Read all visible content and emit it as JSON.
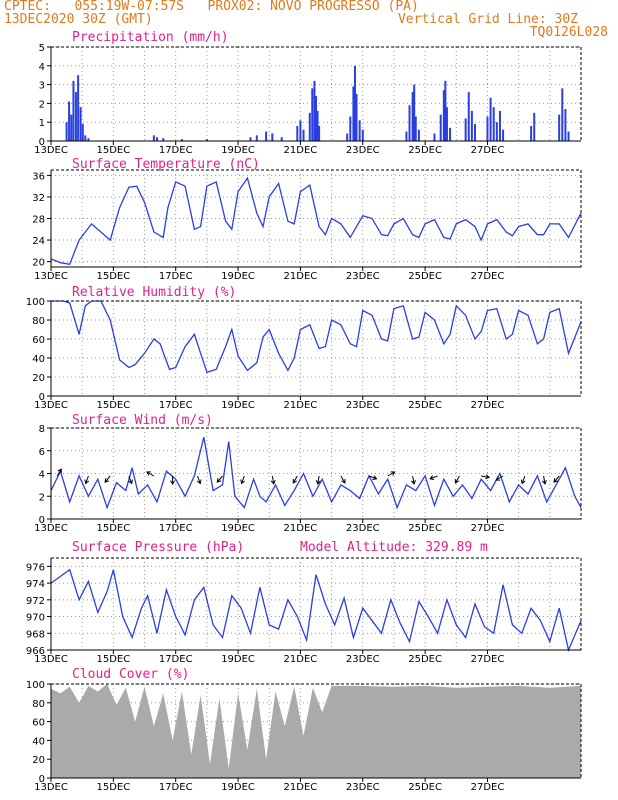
{
  "header": {
    "line1": "CPTEC:   055:19W-07:57S   PROX02: NOVO PROGRESSO (PA)",
    "line2": "13DEC2020 30Z (GMT)",
    "vertical_grid": "Vertical Grid Line: 30Z",
    "code": "TQ0126L028"
  },
  "colors": {
    "header": "#e07a1e",
    "title": "#e0218a",
    "line": "#2a3fe0",
    "cloud": "#aaaaaa"
  },
  "chart_data": [
    {
      "type": "bar",
      "title": "Precipitation (mm/h)",
      "ylim": [
        0,
        5
      ],
      "yticks": [
        0,
        1,
        2,
        3,
        4,
        5
      ],
      "xlabels": [
        "13DEC",
        "15DEC",
        "17DEC",
        "19DEC",
        "21DEC",
        "23DEC",
        "25DEC",
        "27DEC"
      ],
      "bars": [
        [
          0.5,
          1.0
        ],
        [
          0.58,
          2.1
        ],
        [
          0.65,
          1.4
        ],
        [
          0.72,
          3.2
        ],
        [
          0.8,
          2.6
        ],
        [
          0.87,
          3.5
        ],
        [
          0.95,
          1.8
        ],
        [
          1.02,
          0.9
        ],
        [
          1.1,
          0.3
        ],
        [
          1.2,
          0.15
        ],
        [
          3.3,
          0.3
        ],
        [
          3.4,
          0.2
        ],
        [
          3.6,
          0.15
        ],
        [
          4.2,
          0.1
        ],
        [
          5.0,
          0.1
        ],
        [
          6.4,
          0.2
        ],
        [
          6.6,
          0.3
        ],
        [
          6.9,
          0.5
        ],
        [
          7.1,
          0.4
        ],
        [
          7.4,
          0.2
        ],
        [
          7.9,
          0.8
        ],
        [
          8.0,
          1.1
        ],
        [
          8.1,
          0.6
        ],
        [
          8.3,
          1.5
        ],
        [
          8.38,
          2.8
        ],
        [
          8.45,
          3.2
        ],
        [
          8.5,
          2.4
        ],
        [
          8.55,
          1.6
        ],
        [
          8.6,
          0.8
        ],
        [
          9.5,
          0.4
        ],
        [
          9.6,
          1.3
        ],
        [
          9.7,
          2.9
        ],
        [
          9.75,
          4.0
        ],
        [
          9.8,
          2.5
        ],
        [
          9.9,
          1.1
        ],
        [
          10.0,
          0.6
        ],
        [
          11.4,
          0.5
        ],
        [
          11.5,
          1.9
        ],
        [
          11.6,
          2.6
        ],
        [
          11.65,
          3.0
        ],
        [
          11.7,
          1.3
        ],
        [
          11.8,
          0.6
        ],
        [
          12.3,
          0.4
        ],
        [
          12.5,
          1.4
        ],
        [
          12.6,
          2.7
        ],
        [
          12.65,
          3.2
        ],
        [
          12.7,
          1.8
        ],
        [
          12.8,
          0.7
        ],
        [
          13.3,
          1.2
        ],
        [
          13.4,
          2.6
        ],
        [
          13.5,
          1.6
        ],
        [
          13.6,
          0.9
        ],
        [
          14.0,
          1.3
        ],
        [
          14.1,
          2.3
        ],
        [
          14.2,
          1.8
        ],
        [
          14.3,
          1.0
        ],
        [
          14.4,
          1.6
        ],
        [
          14.5,
          0.6
        ],
        [
          15.4,
          0.8
        ],
        [
          15.5,
          1.5
        ],
        [
          16.3,
          1.4
        ],
        [
          16.4,
          2.8
        ],
        [
          16.5,
          1.7
        ],
        [
          16.6,
          0.5
        ]
      ]
    },
    {
      "type": "line",
      "title": "Surface Temperature (nC)",
      "ylim": [
        19,
        37
      ],
      "yticks": [
        20,
        24,
        28,
        32,
        36
      ],
      "xlabels": [
        "13DEC",
        "15DEC",
        "17DEC",
        "19DEC",
        "21DEC",
        "23DEC",
        "25DEC",
        "27DEC"
      ],
      "x": [
        0.0,
        0.3,
        0.6,
        0.9,
        1.3,
        1.6,
        1.9,
        2.2,
        2.5,
        2.75,
        3.0,
        3.3,
        3.6,
        3.75,
        4.0,
        4.3,
        4.6,
        4.8,
        5.0,
        5.3,
        5.6,
        5.8,
        6.0,
        6.3,
        6.6,
        6.8,
        7.0,
        7.3,
        7.6,
        7.8,
        8.0,
        8.3,
        8.6,
        8.8,
        9.0,
        9.3,
        9.6,
        9.8,
        10.0,
        10.3,
        10.6,
        10.8,
        11.0,
        11.3,
        11.6,
        11.8,
        12.0,
        12.3,
        12.6,
        12.8,
        13.0,
        13.3,
        13.6,
        13.8,
        14.0,
        14.3,
        14.6,
        14.8,
        15.0,
        15.3,
        15.6,
        15.8,
        16.0,
        16.3,
        16.6,
        17.0
      ],
      "y": [
        20.5,
        19.8,
        19.5,
        24.0,
        27.0,
        25.5,
        24.0,
        30.0,
        33.8,
        34.0,
        31.0,
        25.5,
        24.5,
        30.0,
        34.8,
        34.0,
        26.0,
        26.5,
        34.0,
        34.8,
        27.5,
        26.0,
        33.0,
        35.5,
        29.0,
        26.5,
        32.0,
        34.5,
        27.5,
        27.0,
        33.0,
        34.2,
        26.5,
        25.0,
        28.0,
        27.0,
        24.5,
        26.5,
        28.5,
        28.0,
        25.0,
        24.8,
        27.0,
        28.0,
        25.0,
        24.5,
        27.0,
        27.8,
        24.5,
        24.2,
        27.0,
        27.8,
        26.5,
        24.0,
        27.0,
        27.8,
        25.5,
        24.8,
        26.5,
        27.0,
        25.0,
        25.0,
        27.0,
        27.0,
        24.5,
        29.0
      ]
    },
    {
      "type": "line",
      "title": "Relative Humidity (%)",
      "ylim": [
        0,
        100
      ],
      "yticks": [
        0,
        20,
        40,
        60,
        80,
        100
      ],
      "xlabels": [
        "13DEC",
        "15DEC",
        "17DEC",
        "19DEC",
        "21DEC",
        "23DEC",
        "25DEC",
        "27DEC"
      ],
      "x": [
        0.0,
        0.4,
        0.6,
        0.9,
        1.1,
        1.3,
        1.6,
        1.9,
        2.2,
        2.5,
        2.7,
        3.0,
        3.3,
        3.5,
        3.8,
        4.0,
        4.3,
        4.6,
        4.8,
        5.0,
        5.3,
        5.6,
        5.8,
        6.0,
        6.3,
        6.6,
        6.8,
        7.0,
        7.3,
        7.6,
        7.8,
        8.0,
        8.3,
        8.6,
        8.8,
        9.0,
        9.3,
        9.6,
        9.8,
        10.0,
        10.3,
        10.6,
        10.8,
        11.0,
        11.3,
        11.6,
        11.8,
        12.0,
        12.3,
        12.6,
        12.8,
        13.0,
        13.3,
        13.6,
        13.8,
        14.0,
        14.3,
        14.6,
        14.8,
        15.0,
        15.3,
        15.6,
        15.8,
        16.0,
        16.3,
        16.6,
        17.0
      ],
      "y": [
        100,
        100,
        98,
        65,
        95,
        100,
        100,
        80,
        38,
        30,
        33,
        45,
        60,
        55,
        28,
        30,
        52,
        65,
        45,
        25,
        28,
        52,
        70,
        42,
        27,
        35,
        62,
        70,
        45,
        27,
        40,
        70,
        75,
        50,
        52,
        80,
        75,
        55,
        52,
        90,
        85,
        60,
        58,
        92,
        95,
        60,
        62,
        88,
        80,
        55,
        65,
        95,
        85,
        60,
        68,
        90,
        92,
        60,
        65,
        90,
        85,
        55,
        60,
        88,
        92,
        45,
        78
      ]
    },
    {
      "type": "line",
      "title": "Surface Wind (m/s)",
      "ylim": [
        0,
        8
      ],
      "yticks": [
        0,
        2,
        4,
        6,
        8
      ],
      "xlabels": [
        "13DEC",
        "15DEC",
        "17DEC",
        "19DEC",
        "21DEC",
        "23DEC",
        "25DEC",
        "27DEC"
      ],
      "x": [
        0.0,
        0.3,
        0.6,
        0.9,
        1.2,
        1.5,
        1.8,
        2.1,
        2.4,
        2.6,
        2.8,
        3.1,
        3.4,
        3.7,
        4.0,
        4.3,
        4.6,
        4.9,
        5.2,
        5.5,
        5.7,
        5.9,
        6.2,
        6.5,
        6.7,
        6.9,
        7.2,
        7.5,
        7.8,
        8.1,
        8.4,
        8.7,
        9.0,
        9.3,
        9.6,
        9.9,
        10.2,
        10.5,
        10.8,
        11.1,
        11.4,
        11.7,
        12.0,
        12.3,
        12.6,
        12.9,
        13.2,
        13.5,
        13.8,
        14.1,
        14.4,
        14.7,
        15.0,
        15.3,
        15.6,
        15.9,
        16.2,
        16.5,
        16.8,
        17.0
      ],
      "y": [
        2.5,
        4.2,
        1.5,
        3.8,
        2.0,
        3.5,
        1.0,
        3.2,
        2.5,
        4.5,
        2.2,
        3.0,
        1.5,
        4.2,
        3.5,
        2.0,
        3.8,
        7.2,
        2.5,
        3.0,
        6.8,
        2.0,
        1.0,
        3.5,
        2.0,
        1.5,
        3.0,
        1.2,
        2.5,
        4.0,
        2.0,
        3.5,
        1.5,
        3.0,
        2.5,
        1.8,
        3.8,
        2.2,
        3.5,
        1.0,
        3.0,
        2.5,
        3.8,
        1.2,
        3.5,
        2.0,
        3.0,
        1.8,
        3.5,
        2.5,
        4.0,
        1.5,
        3.0,
        2.2,
        3.8,
        1.5,
        3.0,
        4.5,
        2.0,
        1.0
      ]
    },
    {
      "type": "line",
      "title": "Surface Pressure (hPa)",
      "annotation": "Model Altitude: 329.89 m",
      "ylim": [
        966,
        977
      ],
      "yticks": [
        966,
        968,
        970,
        972,
        974,
        976
      ],
      "xlabels": [
        "13DEC",
        "15DEC",
        "17DEC",
        "19DEC",
        "21DEC",
        "23DEC",
        "25DEC",
        "27DEC"
      ],
      "x": [
        0.0,
        0.3,
        0.6,
        0.9,
        1.2,
        1.5,
        1.8,
        2.0,
        2.3,
        2.6,
        2.9,
        3.1,
        3.4,
        3.7,
        4.0,
        4.3,
        4.6,
        4.9,
        5.2,
        5.5,
        5.8,
        6.1,
        6.4,
        6.7,
        7.0,
        7.3,
        7.6,
        7.9,
        8.2,
        8.5,
        8.8,
        9.1,
        9.4,
        9.7,
        10.0,
        10.3,
        10.6,
        10.9,
        11.2,
        11.5,
        11.8,
        12.1,
        12.4,
        12.7,
        13.0,
        13.3,
        13.6,
        13.9,
        14.2,
        14.5,
        14.8,
        15.1,
        15.4,
        15.7,
        16.0,
        16.3,
        16.6,
        17.0
      ],
      "y": [
        974.0,
        974.8,
        975.6,
        972.0,
        974.2,
        970.5,
        973.0,
        975.6,
        970.0,
        967.5,
        971.0,
        972.5,
        968.0,
        973.2,
        970.0,
        967.8,
        972.0,
        973.5,
        969.0,
        967.5,
        972.5,
        971.0,
        968.0,
        973.5,
        969.0,
        968.5,
        972.0,
        970.0,
        967.2,
        975.0,
        971.5,
        969.0,
        972.2,
        967.5,
        971.0,
        969.5,
        968.0,
        972.0,
        969.2,
        967.0,
        971.8,
        970.0,
        968.0,
        972.0,
        969.0,
        967.5,
        971.5,
        968.8,
        968.0,
        973.8,
        969.0,
        968.0,
        971.0,
        969.5,
        967.0,
        971.0,
        966.0,
        969.5
      ]
    },
    {
      "type": "area",
      "title": "Cloud Cover (%)",
      "ylim": [
        0,
        100
      ],
      "yticks": [
        0,
        20,
        40,
        60,
        80,
        100
      ],
      "xlabels": [
        "13DEC",
        "15DEC",
        "17DEC",
        "19DEC",
        "21DEC",
        "23DEC",
        "25DEC",
        "27DEC"
      ],
      "x": [
        0.0,
        0.3,
        0.6,
        0.9,
        1.2,
        1.5,
        1.8,
        2.1,
        2.4,
        2.7,
        3.0,
        3.3,
        3.6,
        3.9,
        4.2,
        4.5,
        4.8,
        5.1,
        5.4,
        5.7,
        6.0,
        6.3,
        6.6,
        6.9,
        7.2,
        7.5,
        7.8,
        8.1,
        8.4,
        8.7,
        9.0,
        10.0,
        11.0,
        12.0,
        13.0,
        14.0,
        15.0,
        16.0,
        17.0
      ],
      "y": [
        95,
        90,
        97,
        80,
        98,
        92,
        100,
        78,
        96,
        60,
        97,
        55,
        90,
        40,
        92,
        25,
        88,
        15,
        85,
        10,
        90,
        30,
        95,
        20,
        92,
        55,
        97,
        45,
        96,
        70,
        98,
        98,
        97,
        98,
        96,
        97,
        98,
        96,
        98
      ]
    }
  ]
}
